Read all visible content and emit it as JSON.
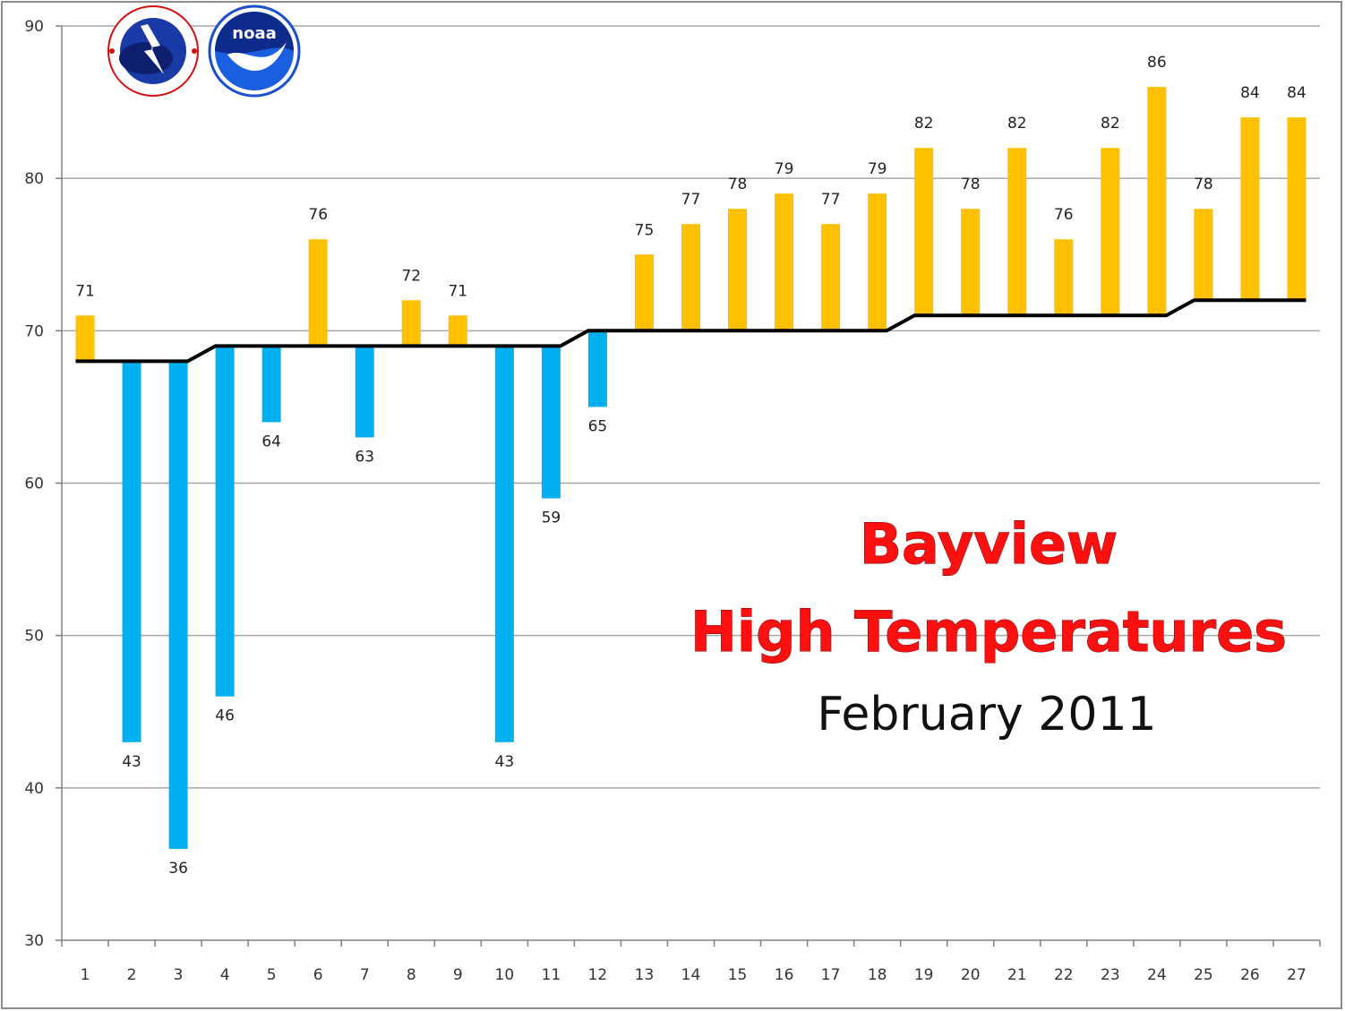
{
  "chart_data": {
    "type": "bar",
    "title_lines": [
      "Bayview",
      "High Temperatures"
    ],
    "subtitle": "February 2011",
    "xlabel": "",
    "ylabel": "",
    "ylim": [
      30,
      90
    ],
    "yticks": [
      30,
      40,
      50,
      60,
      70,
      80,
      90
    ],
    "grid": true,
    "categories": [
      "1",
      "2",
      "3",
      "4",
      "5",
      "6",
      "7",
      "8",
      "9",
      "10",
      "11",
      "12",
      "13",
      "14",
      "15",
      "16",
      "17",
      "18",
      "19",
      "20",
      "21",
      "22",
      "23",
      "24",
      "25",
      "26",
      "27"
    ],
    "values": [
      71,
      43,
      36,
      46,
      64,
      76,
      63,
      72,
      71,
      43,
      59,
      65,
      75,
      77,
      78,
      79,
      77,
      79,
      82,
      78,
      82,
      76,
      82,
      86,
      78,
      84,
      84
    ],
    "normals": [
      68,
      68,
      68,
      69,
      69,
      69,
      69,
      69,
      69,
      69,
      69,
      70,
      70,
      70,
      70,
      70,
      70,
      70,
      71,
      71,
      71,
      71,
      71,
      71,
      72,
      72,
      72
    ],
    "colors": {
      "above_normal": "#ffc000",
      "below_normal": "#00b0f0",
      "normal_line": "#000000",
      "grid": "#a6a6a6",
      "axis": "#808080"
    },
    "logos": [
      "noaa-nws-logo",
      "noaa-logo"
    ]
  }
}
